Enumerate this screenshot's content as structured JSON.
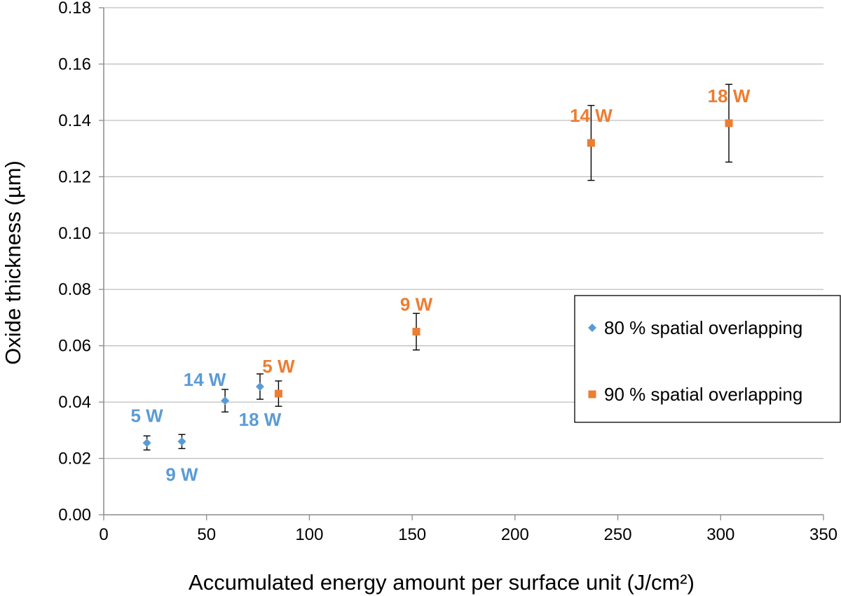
{
  "chart_data": {
    "type": "scatter",
    "title": "",
    "xlabel": "Accumulated energy amount per surface unit (J/cm²)",
    "ylabel": "Oxide thickness (µm)",
    "xlim": [
      0,
      350
    ],
    "ylim": [
      0,
      0.18
    ],
    "x_ticks": [
      0,
      50,
      100,
      150,
      200,
      250,
      300,
      350
    ],
    "x_tick_labels": [
      "0",
      "50",
      "100",
      "150",
      "200",
      "250",
      "300",
      "350"
    ],
    "y_ticks": [
      0,
      0.02,
      0.04,
      0.06,
      0.08,
      0.1,
      0.12,
      0.14,
      0.16,
      0.18
    ],
    "y_tick_labels": [
      "0.00",
      "0.02",
      "0.04",
      "0.06",
      "0.08",
      "0.10",
      "0.12",
      "0.14",
      "0.16",
      "0.18"
    ],
    "grid": "horizontal",
    "legend_position": "right",
    "series": [
      {
        "name": "80 % spatial overlapping",
        "marker": "diamond",
        "color": "#5B9BD5",
        "points": [
          {
            "x": 21,
            "y": 0.0255,
            "err": 0.0025,
            "label": "5 W",
            "label_pos": "above"
          },
          {
            "x": 38,
            "y": 0.026,
            "err": 0.0025,
            "label": "9 W",
            "label_pos": "below"
          },
          {
            "x": 59,
            "y": 0.0405,
            "err": 0.004,
            "label": "14 W",
            "label_pos": "above-left"
          },
          {
            "x": 76,
            "y": 0.0455,
            "err": 0.0045,
            "label": "18 W",
            "label_pos": "below"
          }
        ]
      },
      {
        "name": "90 % spatial overlapping",
        "marker": "square",
        "color": "#ED7D31",
        "points": [
          {
            "x": 85,
            "y": 0.043,
            "err": 0.0045,
            "label": "5 W",
            "label_pos": "above"
          },
          {
            "x": 152,
            "y": 0.065,
            "err": 0.0065,
            "label": "9 W",
            "label_pos": "above"
          },
          {
            "x": 237,
            "y": 0.132,
            "err": 0.0133,
            "label": "14 W",
            "label_pos": "above"
          },
          {
            "x": 304,
            "y": 0.139,
            "err": 0.0138,
            "label": "18 W",
            "label_pos": "above"
          }
        ]
      }
    ]
  }
}
